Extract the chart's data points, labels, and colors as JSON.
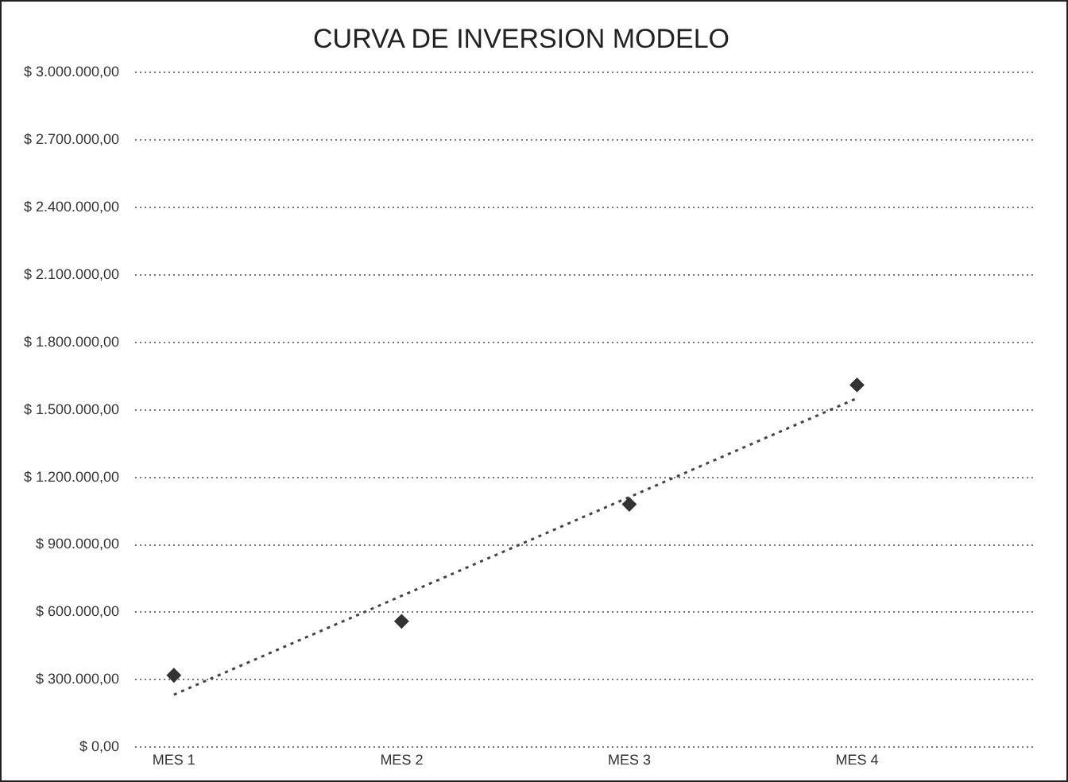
{
  "chart_data": {
    "type": "scatter",
    "title": "CURVA DE INVERSION MODELO",
    "categories": [
      "MES 1",
      "MES 2",
      "MES 3",
      "MES 4"
    ],
    "series": [
      {
        "color": "#333333",
        "x": [
          "MES 1",
          "MES 2",
          "MES 3",
          "MES 4"
        ],
        "values": [
          320000,
          560000,
          1080000,
          1610000
        ],
        "marker": "diamond"
      },
      {
        "type": "line",
        "color": "#444444",
        "x": [
          "MES 1",
          "MES 4"
        ],
        "values": [
          234000,
          1551000
        ],
        "line_style": "dotted",
        "marker": "none"
      }
    ],
    "ylim": [
      0,
      3000000
    ],
    "yticks": [
      {
        "value": 0,
        "label": "$ 0,00"
      },
      {
        "value": 300000,
        "label": "$ 300.000,00"
      },
      {
        "value": 600000,
        "label": "$ 600.000,00"
      },
      {
        "value": 900000,
        "label": "$ 900.000,00"
      },
      {
        "value": 1200000,
        "label": "$ 1.200.000,00"
      },
      {
        "value": 1500000,
        "label": "$ 1.500.000,00"
      },
      {
        "value": 1800000,
        "label": "$ 1.800.000,00"
      },
      {
        "value": 2100000,
        "label": "$ 2.100.000,00"
      },
      {
        "value": 2400000,
        "label": "$ 2.400.000,00"
      },
      {
        "value": 2700000,
        "label": "$ 2.700.000,00"
      },
      {
        "value": 3000000,
        "label": "$ 3.000.000,00"
      }
    ],
    "grid": "y",
    "legend": false
  }
}
